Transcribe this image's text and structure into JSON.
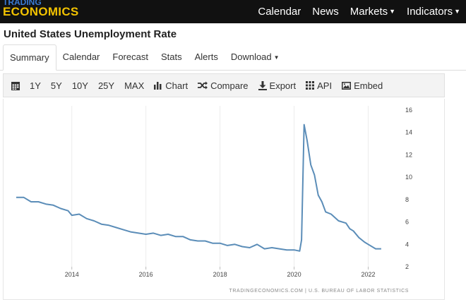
{
  "logo": {
    "line1": "TRADING",
    "line2": "ECONOMICS"
  },
  "topnav": {
    "items": [
      {
        "label": "Calendar",
        "dropdown": false
      },
      {
        "label": "News",
        "dropdown": false
      },
      {
        "label": "Markets",
        "dropdown": true
      },
      {
        "label": "Indicators",
        "dropdown": true
      }
    ]
  },
  "page": {
    "title": "United States Unemployment Rate"
  },
  "tabs": [
    {
      "label": "Summary",
      "active": true
    },
    {
      "label": "Calendar"
    },
    {
      "label": "Forecast"
    },
    {
      "label": "Stats"
    },
    {
      "label": "Alerts"
    },
    {
      "label": "Download",
      "dropdown": true
    }
  ],
  "toolbar": {
    "ranges": [
      "1Y",
      "5Y",
      "10Y",
      "25Y",
      "MAX"
    ],
    "actions": [
      {
        "label": "Chart",
        "icon": "bar-chart-icon"
      },
      {
        "label": "Compare",
        "icon": "shuffle-icon"
      },
      {
        "label": "Export",
        "icon": "download-icon"
      },
      {
        "label": "API",
        "icon": "grid-icon"
      },
      {
        "label": "Embed",
        "icon": "image-icon"
      }
    ]
  },
  "chart_data": {
    "type": "line",
    "x_ticks": [
      "2014",
      "2016",
      "2018",
      "2020",
      "2022"
    ],
    "y_ticks": [
      2,
      4,
      6,
      8,
      10,
      12,
      14,
      16
    ],
    "ylim": [
      2,
      16
    ],
    "xlim": [
      2012.5,
      2022.6
    ],
    "grid": true,
    "line_color": "#5b8db8",
    "source": "TRADINGECONOMICS.COM  |  U.S. BUREAU OF LABOR STATISTICS",
    "points": [
      [
        2012.5,
        8.2
      ],
      [
        2012.7,
        8.2
      ],
      [
        2012.9,
        7.8
      ],
      [
        2013.1,
        7.8
      ],
      [
        2013.3,
        7.6
      ],
      [
        2013.5,
        7.5
      ],
      [
        2013.7,
        7.2
      ],
      [
        2013.9,
        7.0
      ],
      [
        2014.0,
        6.6
      ],
      [
        2014.2,
        6.7
      ],
      [
        2014.4,
        6.3
      ],
      [
        2014.6,
        6.1
      ],
      [
        2014.8,
        5.8
      ],
      [
        2015.0,
        5.7
      ],
      [
        2015.2,
        5.5
      ],
      [
        2015.4,
        5.3
      ],
      [
        2015.6,
        5.1
      ],
      [
        2015.8,
        5.0
      ],
      [
        2016.0,
        4.9
      ],
      [
        2016.2,
        5.0
      ],
      [
        2016.4,
        4.8
      ],
      [
        2016.6,
        4.9
      ],
      [
        2016.8,
        4.7
      ],
      [
        2017.0,
        4.7
      ],
      [
        2017.2,
        4.4
      ],
      [
        2017.4,
        4.3
      ],
      [
        2017.6,
        4.3
      ],
      [
        2017.8,
        4.1
      ],
      [
        2018.0,
        4.1
      ],
      [
        2018.2,
        3.9
      ],
      [
        2018.4,
        4.0
      ],
      [
        2018.6,
        3.8
      ],
      [
        2018.8,
        3.7
      ],
      [
        2019.0,
        4.0
      ],
      [
        2019.2,
        3.6
      ],
      [
        2019.4,
        3.7
      ],
      [
        2019.6,
        3.6
      ],
      [
        2019.8,
        3.5
      ],
      [
        2020.0,
        3.5
      ],
      [
        2020.15,
        3.4
      ],
      [
        2020.2,
        4.4
      ],
      [
        2020.27,
        14.7
      ],
      [
        2020.35,
        13.3
      ],
      [
        2020.45,
        11.1
      ],
      [
        2020.55,
        10.2
      ],
      [
        2020.65,
        8.4
      ],
      [
        2020.75,
        7.8
      ],
      [
        2020.85,
        6.9
      ],
      [
        2021.0,
        6.7
      ],
      [
        2021.2,
        6.1
      ],
      [
        2021.4,
        5.9
      ],
      [
        2021.5,
        5.4
      ],
      [
        2021.6,
        5.2
      ],
      [
        2021.75,
        4.6
      ],
      [
        2021.9,
        4.2
      ],
      [
        2022.0,
        4.0
      ],
      [
        2022.2,
        3.6
      ],
      [
        2022.35,
        3.6
      ]
    ]
  }
}
